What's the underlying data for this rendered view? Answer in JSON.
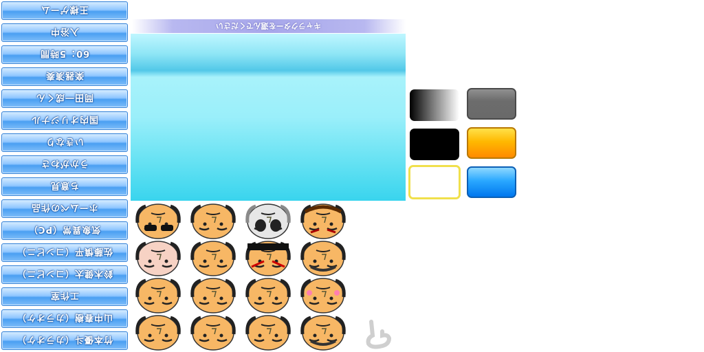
{
  "menu": {
    "items": [
      {
        "label": "王様ゲーム"
      },
      {
        "label": "入浴中"
      },
      {
        "label": "60：5時間"
      },
      {
        "label": "楽器演奏"
      },
      {
        "label": "岡田一成くん"
      },
      {
        "label": "国内オリジナル"
      },
      {
        "label": "いきなり"
      },
      {
        "label": "うかがわさ"
      },
      {
        "label": "ち意見"
      },
      {
        "label": "ホームペの作品"
      },
      {
        "label": "気象異常（PC）"
      },
      {
        "label": "佐藤慎平（コンビニ）"
      },
      {
        "label": "鈴木健太（コンビニ）"
      },
      {
        "label": "工作室"
      },
      {
        "label": "山中春樹（カラオケ）"
      },
      {
        "label": "竹本優斗（カラオケ）"
      }
    ]
  },
  "banner": {
    "text": "キャラクターを選んでください"
  },
  "colors": {
    "menu_button": "#4a9ff2",
    "panel_top": "#bff6ff",
    "panel_bottom": "#39d4ee",
    "swatch_orange": "#ffb800",
    "swatch_blue": "#2aa8ff",
    "swatch_highlight": "#f0e04c"
  },
  "swatches": [
    {
      "name": "gradient",
      "color": "#000000-#ffffff"
    },
    {
      "name": "gray",
      "color": "#6c6c6c"
    },
    {
      "name": "black",
      "color": "#000000"
    },
    {
      "name": "orange",
      "color": "#ffb800"
    },
    {
      "name": "white-selected",
      "color": "#ffffff"
    },
    {
      "name": "blue",
      "color": "#2aa8ff"
    }
  ],
  "faces": [
    {
      "icon": "sunglasses-face-icon",
      "style": "sunglasses"
    },
    {
      "icon": "bald-face-icon",
      "style": "plain"
    },
    {
      "icon": "skull-face-icon",
      "style": "skull"
    },
    {
      "icon": "angry-face-icon",
      "style": "angry"
    },
    {
      "icon": "pale-face-icon",
      "style": "pale"
    },
    {
      "icon": "bald-face-icon",
      "style": "plain"
    },
    {
      "icon": "kabuki-face-icon",
      "style": "kabuki"
    },
    {
      "icon": "beard-face-icon",
      "style": "beard"
    },
    {
      "icon": "hair-face-icon",
      "style": "hair"
    },
    {
      "icon": "bald-face-icon",
      "style": "plain"
    },
    {
      "icon": "frown-face-icon",
      "style": "frown"
    },
    {
      "icon": "blush-face-icon",
      "style": "blush"
    },
    {
      "icon": "shouting-face-icon",
      "style": "shout"
    },
    {
      "icon": "round-face-icon",
      "style": "round"
    },
    {
      "icon": "stern-face-icon",
      "style": "stern"
    },
    {
      "icon": "mustache-face-icon",
      "style": "mustache"
    }
  ]
}
